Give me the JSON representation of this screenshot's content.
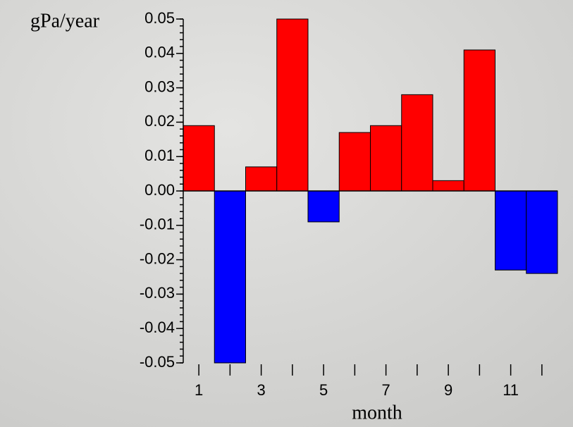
{
  "chart_data": {
    "type": "bar",
    "y_label": "gPa/year",
    "x_label": "month",
    "x": [
      1,
      2,
      3,
      4,
      5,
      6,
      7,
      8,
      9,
      10,
      11,
      12
    ],
    "values": [
      0.019,
      -0.05,
      0.007,
      0.05,
      -0.009,
      0.017,
      0.019,
      0.028,
      0.003,
      0.041,
      -0.023,
      -0.024
    ],
    "positive_color": "#ff0000",
    "negative_color": "#0000ff",
    "xlim": [
      0.5,
      12.5
    ],
    "xticks": [
      1,
      3,
      5,
      7,
      9,
      11
    ],
    "xminor": [
      2,
      4,
      6,
      8,
      10,
      12
    ],
    "ylim": [
      -0.05,
      0.05
    ],
    "yticks": [
      0.05,
      0.04,
      0.03,
      0.02,
      0.01,
      {
        "value": 0,
        "label": "0.00"
      },
      -0.01,
      -0.02,
      -0.03,
      -0.04,
      -0.05
    ],
    "y_minor_per_major": 5
  }
}
